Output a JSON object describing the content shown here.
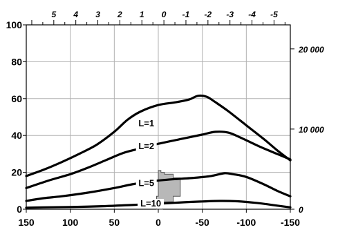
{
  "chart_data": {
    "type": "line",
    "title": "",
    "xlabel": "",
    "ylabel": "",
    "x_ticks": [
      150,
      100,
      50,
      0,
      -50,
      -100,
      -150
    ],
    "xlim": [
      150,
      -150
    ],
    "y_ticks": [
      0,
      20,
      40,
      60,
      80,
      100
    ],
    "ylim": [
      0,
      100
    ],
    "top_axis": {
      "ticks": [
        5,
        4,
        3,
        2,
        1,
        0,
        -1,
        -2,
        -3,
        -4,
        -5
      ],
      "range": [
        6.25,
        -5.74
      ]
    },
    "right_axis": {
      "ticks": [
        "0",
        "10 000",
        "20 000"
      ],
      "values": [
        0,
        10000,
        20000
      ],
      "range": [
        0,
        23000
      ]
    },
    "grid": true,
    "series": [
      {
        "name": "L=1",
        "points": [
          [
            -150,
            26.5
          ],
          [
            -135,
            32
          ],
          [
            -120,
            38
          ],
          [
            -100,
            45.5
          ],
          [
            -80,
            53
          ],
          [
            -65,
            58
          ],
          [
            -55,
            61
          ],
          [
            -45,
            61.5
          ],
          [
            -35,
            59.5
          ],
          [
            -20,
            58
          ],
          [
            0,
            56.5
          ],
          [
            20,
            53
          ],
          [
            35,
            48.5
          ],
          [
            50,
            42
          ],
          [
            70,
            35
          ],
          [
            90,
            30
          ],
          [
            110,
            25.5
          ],
          [
            130,
            21.5
          ],
          [
            150,
            18
          ]
        ]
      },
      {
        "name": "L=2",
        "points": [
          [
            -150,
            27
          ],
          [
            -135,
            30
          ],
          [
            -115,
            34
          ],
          [
            -95,
            38.5
          ],
          [
            -80,
            41.5
          ],
          [
            -65,
            42
          ],
          [
            -50,
            40.5
          ],
          [
            -30,
            38.5
          ],
          [
            0,
            35.5
          ],
          [
            20,
            33
          ],
          [
            40,
            30.5
          ],
          [
            60,
            26.5
          ],
          [
            80,
            22.5
          ],
          [
            100,
            19
          ],
          [
            125,
            15.5
          ],
          [
            150,
            11.5
          ]
        ]
      },
      {
        "name": "L=5",
        "points": [
          [
            -150,
            7
          ],
          [
            -135,
            10
          ],
          [
            -120,
            13.5
          ],
          [
            -100,
            17.5
          ],
          [
            -85,
            19
          ],
          [
            -75,
            19.5
          ],
          [
            -60,
            18
          ],
          [
            -40,
            17
          ],
          [
            -10,
            16
          ],
          [
            10,
            15
          ],
          [
            30,
            13.5
          ],
          [
            50,
            11.5
          ],
          [
            80,
            9
          ],
          [
            110,
            7
          ],
          [
            130,
            6
          ],
          [
            150,
            4.5
          ]
        ]
      },
      {
        "name": "L=10",
        "points": [
          [
            -150,
            1
          ],
          [
            -130,
            2.3
          ],
          [
            -110,
            3.5
          ],
          [
            -90,
            4.3
          ],
          [
            -70,
            4.5
          ],
          [
            -50,
            4.2
          ],
          [
            -30,
            3.8
          ],
          [
            0,
            3
          ],
          [
            30,
            2.3
          ],
          [
            60,
            1.7
          ],
          [
            100,
            1.2
          ],
          [
            130,
            1
          ],
          [
            150,
            0.8
          ]
        ]
      }
    ],
    "region": {
      "points": [
        [
          0,
          21
        ],
        [
          -3,
          21
        ],
        [
          -3,
          20
        ],
        [
          -7,
          20
        ],
        [
          -7,
          19
        ],
        [
          -17,
          19
        ],
        [
          -17,
          17
        ],
        [
          -25,
          17
        ],
        [
          -25,
          7
        ],
        [
          -17,
          7
        ],
        [
          -17,
          4
        ],
        [
          -5,
          4
        ],
        [
          -5,
          0
        ],
        [
          2,
          0
        ],
        [
          2,
          4
        ],
        [
          2,
          7
        ],
        [
          0,
          7
        ],
        [
          0,
          21
        ]
      ]
    },
    "labels": [
      {
        "text": "L=1",
        "series": 0
      },
      {
        "text": "L=2",
        "series": 1
      },
      {
        "text": "L=5",
        "series": 2
      },
      {
        "text": "L=10",
        "series": 3
      }
    ]
  },
  "colors": {
    "curve": "#000000",
    "grid": "#b0b0b0",
    "region_fill": "#b8b8b8",
    "background": "#ffffff"
  }
}
